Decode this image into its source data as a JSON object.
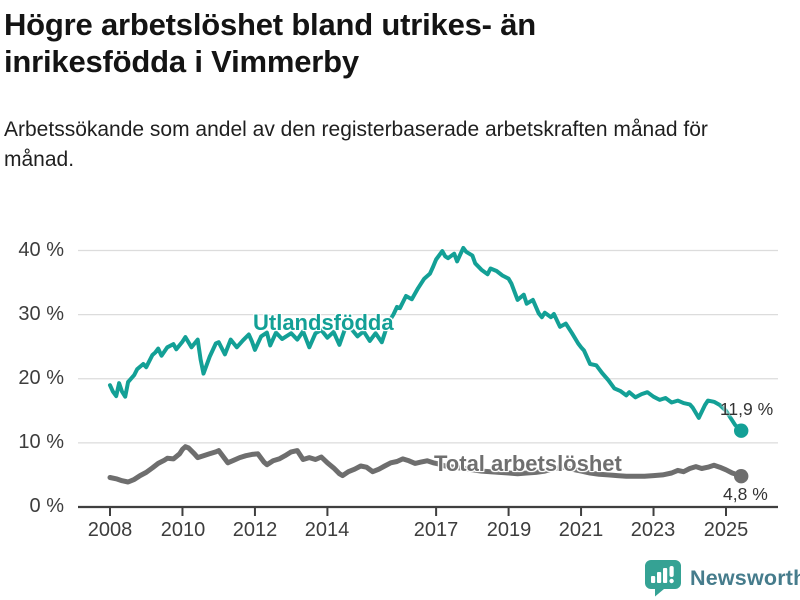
{
  "header": {
    "title": "Högre arbetslöshet bland utrikes- än inrikesfödda i Vimmerby",
    "subtitle": "Arbetssökande som andel av den registerbaserade arbetskraften månad för månad."
  },
  "colors": {
    "accent_teal": "#13a096",
    "line_gray": "#6e6e6e",
    "grid": "#dcdcdc",
    "axis_line": "#3f3f3f",
    "axis_text": "#3d3d3d",
    "annotation_text": "#333333",
    "brand_bubble": "#35a294",
    "brand_text": "#467c8c"
  },
  "chart_data": {
    "type": "line",
    "unit": "%",
    "grid": "horizontal-on",
    "legend_position": "inline-labels",
    "ylim": [
      0,
      40
    ],
    "x_range": [
      2008,
      2025.5
    ],
    "yticks": [
      {
        "value": 40,
        "label": "40 %"
      },
      {
        "value": 30,
        "label": "30 %"
      },
      {
        "value": 20,
        "label": "20 %"
      },
      {
        "value": 10,
        "label": "10 %"
      },
      {
        "value": 0,
        "label": "0 %"
      }
    ],
    "xticks": [
      {
        "value": 2008,
        "label": "2008"
      },
      {
        "value": 2010,
        "label": "2010"
      },
      {
        "value": 2012,
        "label": "2012"
      },
      {
        "value": 2014,
        "label": "2014"
      },
      {
        "value": 2017,
        "label": "2017"
      },
      {
        "value": 2019,
        "label": "2019"
      },
      {
        "value": 2021,
        "label": "2021"
      },
      {
        "value": 2023,
        "label": "2023"
      },
      {
        "value": 2025,
        "label": "2025"
      }
    ],
    "series": [
      {
        "name": "Utlandsfödda",
        "color": "#13a096",
        "stroke_width": 4,
        "end_label": "11,9 %",
        "end_value": 11.9,
        "points": [
          [
            2008.0,
            19.0
          ],
          [
            2008.08,
            18.0
          ],
          [
            2008.17,
            17.3
          ],
          [
            2008.25,
            19.3
          ],
          [
            2008.33,
            18.0
          ],
          [
            2008.42,
            17.2
          ],
          [
            2008.5,
            19.5
          ],
          [
            2008.67,
            20.6
          ],
          [
            2008.75,
            21.5
          ],
          [
            2008.92,
            22.3
          ],
          [
            2009.0,
            21.8
          ],
          [
            2009.17,
            23.7
          ],
          [
            2009.25,
            24.1
          ],
          [
            2009.33,
            24.7
          ],
          [
            2009.42,
            23.6
          ],
          [
            2009.58,
            24.9
          ],
          [
            2009.75,
            25.4
          ],
          [
            2009.83,
            24.6
          ],
          [
            2010.0,
            25.8
          ],
          [
            2010.08,
            26.5
          ],
          [
            2010.25,
            24.9
          ],
          [
            2010.42,
            26.1
          ],
          [
            2010.5,
            23.0
          ],
          [
            2010.58,
            20.8
          ],
          [
            2010.75,
            23.4
          ],
          [
            2010.92,
            25.5
          ],
          [
            2011.0,
            25.7
          ],
          [
            2011.17,
            23.8
          ],
          [
            2011.33,
            26.1
          ],
          [
            2011.5,
            24.9
          ],
          [
            2011.67,
            26.0
          ],
          [
            2011.83,
            26.9
          ],
          [
            2011.92,
            25.8
          ],
          [
            2012.0,
            24.5
          ],
          [
            2012.17,
            26.6
          ],
          [
            2012.33,
            27.2
          ],
          [
            2012.42,
            25.2
          ],
          [
            2012.58,
            27.2
          ],
          [
            2012.75,
            26.2
          ],
          [
            2012.92,
            26.8
          ],
          [
            2013.0,
            27.1
          ],
          [
            2013.17,
            26.1
          ],
          [
            2013.33,
            27.4
          ],
          [
            2013.5,
            24.9
          ],
          [
            2013.67,
            27.1
          ],
          [
            2013.83,
            27.6
          ],
          [
            2014.0,
            26.4
          ],
          [
            2014.17,
            27.3
          ],
          [
            2014.33,
            25.3
          ],
          [
            2014.5,
            28.0
          ],
          [
            2014.67,
            27.7
          ],
          [
            2014.83,
            26.6
          ],
          [
            2015.0,
            27.4
          ],
          [
            2015.17,
            25.9
          ],
          [
            2015.33,
            27.1
          ],
          [
            2015.5,
            25.7
          ],
          [
            2015.67,
            28.6
          ],
          [
            2015.83,
            30.1
          ],
          [
            2015.92,
            31.2
          ],
          [
            2016.0,
            31.0
          ],
          [
            2016.17,
            32.9
          ],
          [
            2016.33,
            32.4
          ],
          [
            2016.5,
            34.1
          ],
          [
            2016.67,
            35.6
          ],
          [
            2016.83,
            36.4
          ],
          [
            2016.92,
            37.5
          ],
          [
            2017.0,
            38.6
          ],
          [
            2017.17,
            39.9
          ],
          [
            2017.25,
            39.1
          ],
          [
            2017.33,
            38.8
          ],
          [
            2017.5,
            39.5
          ],
          [
            2017.58,
            38.3
          ],
          [
            2017.75,
            40.4
          ],
          [
            2017.83,
            39.8
          ],
          [
            2018.0,
            39.2
          ],
          [
            2018.08,
            38.0
          ],
          [
            2018.25,
            37.0
          ],
          [
            2018.42,
            36.3
          ],
          [
            2018.5,
            37.2
          ],
          [
            2018.67,
            36.8
          ],
          [
            2018.83,
            36.1
          ],
          [
            2019.0,
            35.6
          ],
          [
            2019.08,
            34.8
          ],
          [
            2019.25,
            32.3
          ],
          [
            2019.42,
            33.1
          ],
          [
            2019.5,
            31.7
          ],
          [
            2019.67,
            32.3
          ],
          [
            2019.83,
            30.2
          ],
          [
            2019.92,
            29.6
          ],
          [
            2020.0,
            30.3
          ],
          [
            2020.17,
            29.6
          ],
          [
            2020.25,
            30.1
          ],
          [
            2020.42,
            28.1
          ],
          [
            2020.58,
            28.6
          ],
          [
            2020.75,
            27.1
          ],
          [
            2020.92,
            25.5
          ],
          [
            2021.0,
            24.9
          ],
          [
            2021.08,
            24.4
          ],
          [
            2021.25,
            22.3
          ],
          [
            2021.42,
            22.1
          ],
          [
            2021.58,
            20.9
          ],
          [
            2021.75,
            19.8
          ],
          [
            2021.92,
            18.5
          ],
          [
            2022.08,
            18.1
          ],
          [
            2022.25,
            17.4
          ],
          [
            2022.33,
            17.9
          ],
          [
            2022.5,
            17.1
          ],
          [
            2022.67,
            17.6
          ],
          [
            2022.83,
            17.9
          ],
          [
            2023.0,
            17.2
          ],
          [
            2023.17,
            16.7
          ],
          [
            2023.33,
            17.0
          ],
          [
            2023.5,
            16.3
          ],
          [
            2023.67,
            16.6
          ],
          [
            2023.83,
            16.2
          ],
          [
            2024.0,
            16.0
          ],
          [
            2024.08,
            15.5
          ],
          [
            2024.25,
            13.9
          ],
          [
            2024.42,
            15.9
          ],
          [
            2024.5,
            16.6
          ],
          [
            2024.67,
            16.4
          ],
          [
            2024.83,
            15.9
          ],
          [
            2025.0,
            15.0
          ],
          [
            2025.17,
            13.5
          ],
          [
            2025.25,
            12.8
          ],
          [
            2025.42,
            11.9
          ]
        ]
      },
      {
        "name": "Total arbetslöshet",
        "color": "#6e6e6e",
        "stroke_width": 5,
        "end_label": "4,8 %",
        "end_value": 4.8,
        "points": [
          [
            2008.0,
            4.6
          ],
          [
            2008.17,
            4.4
          ],
          [
            2008.33,
            4.1
          ],
          [
            2008.5,
            3.9
          ],
          [
            2008.67,
            4.3
          ],
          [
            2008.83,
            4.9
          ],
          [
            2009.0,
            5.4
          ],
          [
            2009.17,
            6.1
          ],
          [
            2009.33,
            6.8
          ],
          [
            2009.5,
            7.3
          ],
          [
            2009.58,
            7.6
          ],
          [
            2009.75,
            7.5
          ],
          [
            2009.92,
            8.3
          ],
          [
            2010.0,
            9.0
          ],
          [
            2010.08,
            9.4
          ],
          [
            2010.17,
            9.2
          ],
          [
            2010.33,
            8.3
          ],
          [
            2010.42,
            7.7
          ],
          [
            2010.58,
            8.0
          ],
          [
            2010.75,
            8.3
          ],
          [
            2010.92,
            8.6
          ],
          [
            2011.0,
            8.8
          ],
          [
            2011.17,
            7.5
          ],
          [
            2011.25,
            6.9
          ],
          [
            2011.42,
            7.3
          ],
          [
            2011.58,
            7.7
          ],
          [
            2011.75,
            8.0
          ],
          [
            2011.92,
            8.2
          ],
          [
            2012.08,
            8.3
          ],
          [
            2012.25,
            7.0
          ],
          [
            2012.33,
            6.6
          ],
          [
            2012.5,
            7.2
          ],
          [
            2012.67,
            7.5
          ],
          [
            2012.83,
            8.0
          ],
          [
            2013.0,
            8.6
          ],
          [
            2013.17,
            8.8
          ],
          [
            2013.33,
            7.4
          ],
          [
            2013.5,
            7.7
          ],
          [
            2013.67,
            7.4
          ],
          [
            2013.83,
            7.8
          ],
          [
            2014.0,
            6.9
          ],
          [
            2014.17,
            6.1
          ],
          [
            2014.33,
            5.2
          ],
          [
            2014.42,
            4.9
          ],
          [
            2014.58,
            5.5
          ],
          [
            2014.75,
            5.9
          ],
          [
            2014.92,
            6.4
          ],
          [
            2015.08,
            6.2
          ],
          [
            2015.25,
            5.5
          ],
          [
            2015.42,
            5.9
          ],
          [
            2015.58,
            6.4
          ],
          [
            2015.75,
            6.9
          ],
          [
            2015.92,
            7.1
          ],
          [
            2016.08,
            7.5
          ],
          [
            2016.25,
            7.2
          ],
          [
            2016.42,
            6.8
          ],
          [
            2016.58,
            7.0
          ],
          [
            2016.75,
            7.2
          ],
          [
            2016.92,
            6.9
          ],
          [
            2017.08,
            6.7
          ],
          [
            2017.25,
            6.4
          ],
          [
            2017.5,
            6.2
          ],
          [
            2017.75,
            6.0
          ],
          [
            2018.0,
            5.8
          ],
          [
            2018.25,
            5.6
          ],
          [
            2018.5,
            5.5
          ],
          [
            2018.75,
            5.4
          ],
          [
            2019.0,
            5.3
          ],
          [
            2019.25,
            5.2
          ],
          [
            2019.5,
            5.3
          ],
          [
            2019.75,
            5.4
          ],
          [
            2020.0,
            5.6
          ],
          [
            2020.25,
            6.0
          ],
          [
            2020.5,
            6.2
          ],
          [
            2020.75,
            5.9
          ],
          [
            2021.0,
            5.6
          ],
          [
            2021.25,
            5.3
          ],
          [
            2021.5,
            5.1
          ],
          [
            2021.75,
            5.0
          ],
          [
            2022.0,
            4.9
          ],
          [
            2022.25,
            4.8
          ],
          [
            2022.5,
            4.8
          ],
          [
            2022.75,
            4.8
          ],
          [
            2023.0,
            4.9
          ],
          [
            2023.25,
            5.0
          ],
          [
            2023.5,
            5.3
          ],
          [
            2023.67,
            5.7
          ],
          [
            2023.83,
            5.5
          ],
          [
            2024.0,
            6.0
          ],
          [
            2024.17,
            6.3
          ],
          [
            2024.33,
            6.0
          ],
          [
            2024.5,
            6.2
          ],
          [
            2024.67,
            6.5
          ],
          [
            2024.83,
            6.2
          ],
          [
            2025.0,
            5.8
          ],
          [
            2025.17,
            5.3
          ],
          [
            2025.33,
            5.0
          ],
          [
            2025.42,
            4.8
          ]
        ]
      }
    ]
  },
  "footer": {
    "brand_label": "Newsworthy"
  }
}
